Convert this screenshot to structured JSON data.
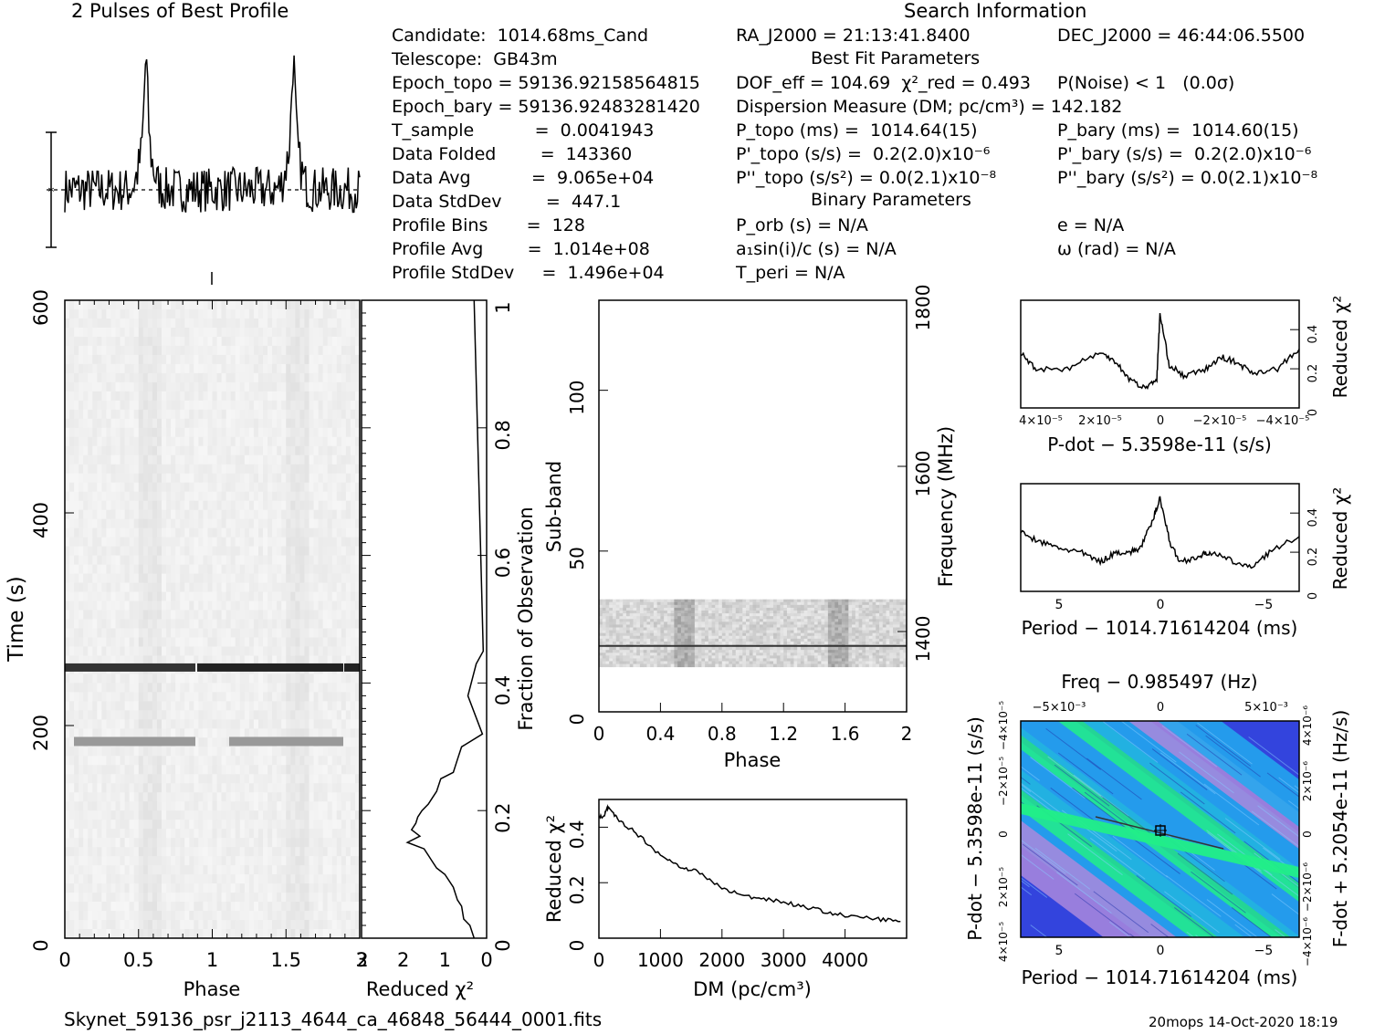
{
  "titles": {
    "profile": "2 Pulses of Best Profile",
    "search": "Search Information",
    "best_fit": "Best Fit Parameters",
    "binary": "Binary Parameters"
  },
  "info_left": [
    "Candidate:  1014.68ms_Cand",
    "Telescope:  GB43m",
    "Epoch_topo = 59136.92158564815",
    "Epoch_bary = 59136.92483281420",
    "T_sample           =  0.0041943",
    "Data Folded        =  143360",
    "Data Avg           =  9.065e+04",
    "Data StdDev        =  447.1",
    "Profile Bins       =  128",
    "Profile Avg        =  1.014e+08",
    "Profile StdDev     =  1.496e+04"
  ],
  "info_mid": [
    "RA_J2000 = 21:13:41.8400",
    "",
    "DOF_eff = 104.69  χ²_red = 0.493",
    "Dispersion Measure (DM; pc/cm³) = 142.182",
    "P_topo (ms) =  1014.64(15)",
    "P'_topo (s/s) =  0.2(2.0)x10⁻⁶",
    "P''_topo (s/s²) = 0.0(2.1)x10⁻⁸",
    "",
    "P_orb (s) = N/A",
    "a₁sin(i)/c (s) = N/A",
    "T_peri = N/A"
  ],
  "info_right": [
    "DEC_J2000 = 46:44:06.5500",
    "",
    "P(Noise) < 1   (0.0σ)",
    "",
    "P_bary (ms) =  1014.60(15)",
    "P'_bary (s/s) =  0.2(2.0)x10⁻⁶",
    "P''_bary (s/s²) = 0.0(2.1)x10⁻⁸",
    "",
    "e = N/A",
    "ω (rad) = N/A",
    ""
  ],
  "footer": {
    "filename": "Skynet_59136_psr_j2113_4644_ca_46848_56444_0001.fits",
    "stamp": "20mops 14-Oct-2020 18:19"
  },
  "chart_data": [
    {
      "id": "profile",
      "type": "line",
      "title": "2 Pulses of Best Profile",
      "x_range": [
        0,
        2
      ],
      "peaks_phase": [
        0.55,
        1.55
      ],
      "xlabel": "",
      "ylabel": ""
    },
    {
      "id": "time-phase",
      "type": "heatmap",
      "xlabel": "Phase",
      "ylabel": "Time (s)",
      "x_ticks": [
        "0",
        "0.5",
        "1",
        "1.5",
        "2"
      ],
      "y_ticks": [
        "0",
        "200",
        "400",
        "600"
      ],
      "xlim": [
        0,
        2
      ],
      "ylim": [
        0,
        600
      ],
      "dark_rows_time_s": [
        255,
        185
      ]
    },
    {
      "id": "reduced-chi2-time",
      "type": "line",
      "xlabel": "Reduced χ²",
      "ylabel": "Fraction of Observation",
      "x_ticks": [
        "3",
        "2",
        "1",
        "0"
      ],
      "y_ticks": [
        "0",
        "0.2",
        "0.4",
        "0.6",
        "0.8",
        "1"
      ],
      "xlim": [
        3,
        0
      ],
      "ylim": [
        0,
        1
      ],
      "points": [
        [
          0.3,
          1.0
        ],
        [
          0.08,
          0.45
        ],
        [
          0.25,
          0.43
        ],
        [
          0.45,
          0.38
        ],
        [
          0.1,
          0.32
        ],
        [
          0.6,
          0.3
        ],
        [
          0.7,
          0.28
        ],
        [
          0.8,
          0.26
        ],
        [
          1.1,
          0.25
        ],
        [
          1.2,
          0.23
        ],
        [
          1.3,
          0.22
        ],
        [
          1.4,
          0.21
        ],
        [
          1.55,
          0.2
        ],
        [
          1.65,
          0.19
        ],
        [
          1.7,
          0.18
        ],
        [
          1.8,
          0.17
        ],
        [
          1.6,
          0.16
        ],
        [
          1.9,
          0.15
        ],
        [
          1.5,
          0.14
        ],
        [
          1.4,
          0.13
        ],
        [
          1.3,
          0.12
        ],
        [
          1.2,
          0.11
        ],
        [
          1.0,
          0.1
        ],
        [
          0.8,
          0.08
        ],
        [
          0.7,
          0.06
        ],
        [
          0.6,
          0.05
        ],
        [
          0.55,
          0.03
        ],
        [
          0.4,
          0.02
        ],
        [
          0.3,
          0.0
        ]
      ]
    },
    {
      "id": "subband-phase",
      "type": "heatmap",
      "xlabel": "Phase",
      "ylabel": "Sub-band",
      "y2label": "Frequency (MHz)",
      "x_ticks": [
        "0",
        "0.4",
        "0.8",
        "1.2",
        "1.6",
        "2"
      ],
      "y_ticks": [
        "0",
        "50",
        "100"
      ],
      "y2_ticks": [
        "1400",
        "1600",
        "1800"
      ],
      "xlim": [
        0,
        2
      ],
      "ylim": [
        0,
        128
      ],
      "y2lim": [
        1300,
        1800
      ],
      "band_subbands": [
        14,
        35
      ]
    },
    {
      "id": "dm-curve",
      "type": "line",
      "xlabel": "DM (pc/cm³)",
      "ylabel": "Reduced χ²",
      "x_ticks": [
        "0",
        "1000",
        "2000",
        "3000",
        "4000"
      ],
      "y_ticks": [
        "0",
        "0.2",
        "0.4"
      ],
      "xlim": [
        0,
        5000
      ],
      "ylim": [
        0,
        0.5
      ],
      "points": [
        [
          0,
          0.43
        ],
        [
          100,
          0.45
        ],
        [
          142,
          0.47
        ],
        [
          300,
          0.43
        ],
        [
          600,
          0.38
        ],
        [
          1000,
          0.3
        ],
        [
          1300,
          0.26
        ],
        [
          1600,
          0.24
        ],
        [
          2000,
          0.18
        ],
        [
          2400,
          0.15
        ],
        [
          2800,
          0.14
        ],
        [
          3200,
          0.12
        ],
        [
          3600,
          0.1
        ],
        [
          4000,
          0.08
        ],
        [
          4500,
          0.07
        ],
        [
          4900,
          0.06
        ]
      ]
    },
    {
      "id": "pdot-chi2",
      "type": "line",
      "xlabel": "P-dot − 5.3598e-11 (s/s)",
      "ylabel": "Reduced χ²",
      "x_ticks": [
        "4×10⁻⁵",
        "2×10⁻⁵",
        "0",
        "−2×10⁻⁵",
        "−4×10⁻⁵"
      ],
      "y_ticks": [
        "0",
        "0.2",
        "0.4"
      ],
      "xlim": [
        4.5e-05,
        -4.5e-05
      ],
      "ylim": [
        0,
        0.55
      ],
      "points": [
        [
          4.5e-05,
          0.28
        ],
        [
          4e-05,
          0.2
        ],
        [
          3e-05,
          0.2
        ],
        [
          2e-05,
          0.28
        ],
        [
          1.5e-05,
          0.25
        ],
        [
          1e-05,
          0.15
        ],
        [
          5e-06,
          0.1
        ],
        [
          1e-06,
          0.15
        ],
        [
          0,
          0.48
        ],
        [
          -3e-06,
          0.22
        ],
        [
          -8e-06,
          0.16
        ],
        [
          -1.5e-05,
          0.2
        ],
        [
          -2e-05,
          0.26
        ],
        [
          -2.5e-05,
          0.23
        ],
        [
          -3e-05,
          0.18
        ],
        [
          -3.8e-05,
          0.2
        ],
        [
          -4.5e-05,
          0.3
        ]
      ]
    },
    {
      "id": "period-chi2",
      "type": "line",
      "xlabel": "Period − 1014.71614204 (ms)",
      "ylabel": "Reduced χ²",
      "x_ticks": [
        "5",
        "0",
        "−5"
      ],
      "y_ticks": [
        "0",
        "0.2",
        "0.4"
      ],
      "xlim": [
        7,
        -7
      ],
      "ylim": [
        0,
        0.55
      ],
      "points": [
        [
          7,
          0.3
        ],
        [
          6,
          0.25
        ],
        [
          5,
          0.22
        ],
        [
          4,
          0.2
        ],
        [
          3,
          0.15
        ],
        [
          2.2,
          0.2
        ],
        [
          1.5,
          0.2
        ],
        [
          1,
          0.22
        ],
        [
          0.4,
          0.35
        ],
        [
          0,
          0.48
        ],
        [
          -0.5,
          0.25
        ],
        [
          -1,
          0.15
        ],
        [
          -2,
          0.18
        ],
        [
          -2.5,
          0.2
        ],
        [
          -3.5,
          0.16
        ],
        [
          -4.5,
          0.12
        ],
        [
          -5.5,
          0.2
        ],
        [
          -7,
          0.28
        ]
      ]
    },
    {
      "id": "period-pdot-plane",
      "type": "heatmap",
      "title": "Freq − 0.985497 (Hz)",
      "xlabel": "Period − 1014.71614204 (ms)",
      "ylabel": "P-dot − 5.3598e-11 (s/s)",
      "y2label": "F-dot + 5.2054e-11 (Hz/s)",
      "x_ticks": [
        "5",
        "0",
        "−5"
      ],
      "x2_ticks": [
        "−5×10⁻³",
        "0",
        "5×10⁻³"
      ],
      "y_ticks": [
        "4×10⁻⁵",
        "2×10⁻⁵",
        "0",
        "−2×10⁻⁵",
        "−4×10⁻⁵"
      ],
      "y2_ticks": [
        "−4×10⁻⁶",
        "−2×10⁻⁶",
        "0",
        "2×10⁻⁶",
        "4×10⁻⁶"
      ],
      "colors": [
        "#3344dd",
        "#22aaee",
        "#22ee88",
        "#aa88dd"
      ]
    }
  ]
}
